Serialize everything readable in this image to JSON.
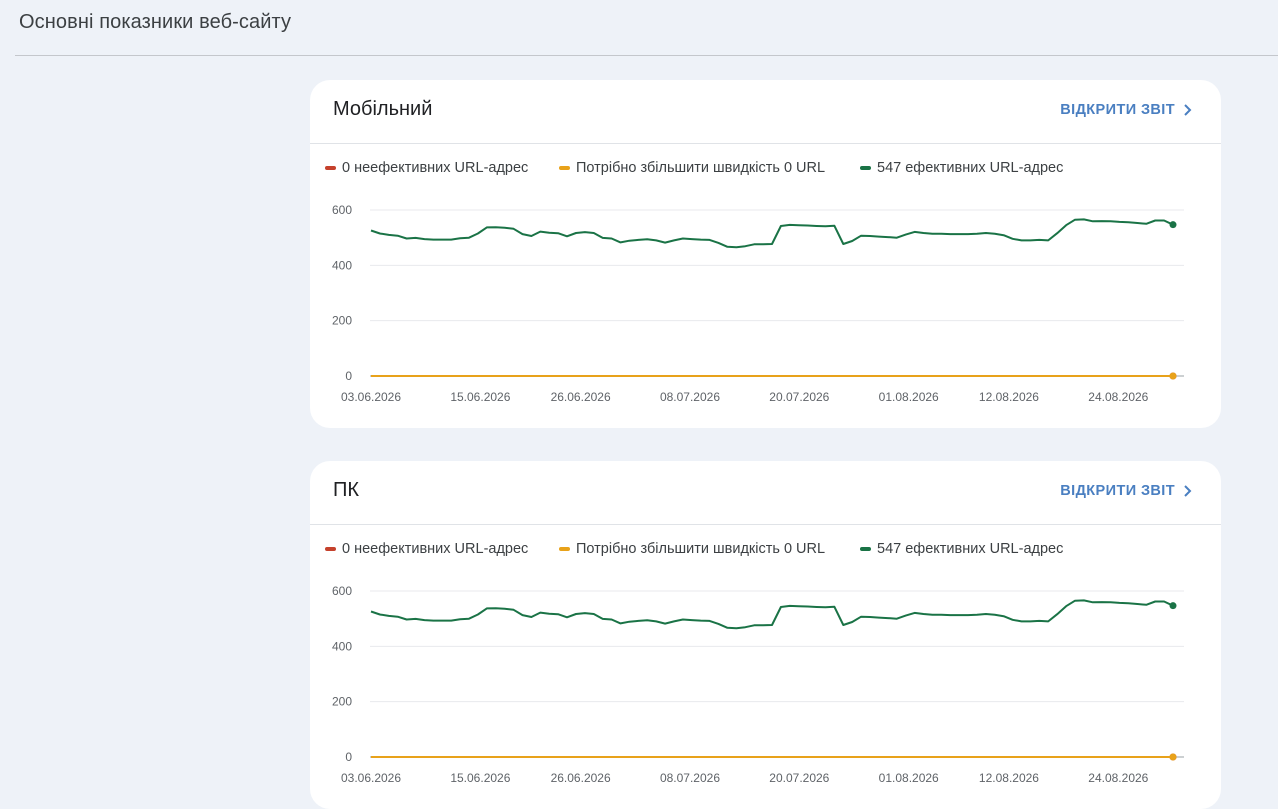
{
  "page": {
    "title": "Основні показники веб-сайту"
  },
  "cards": [
    {
      "id": "mobile",
      "title": "Мобільний",
      "open_report_label": "ВІДКРИТИ ЗВІТ",
      "legend": [
        {
          "label": "0 неефективних URL-адрес",
          "color": "#c5412c"
        },
        {
          "label": "Потрібно збільшити швидкість 0 URL",
          "color": "#e8a21a"
        },
        {
          "label": "547 ефективних URL-адрес",
          "color": "#1a7346"
        }
      ]
    },
    {
      "id": "desktop",
      "title": "ПК",
      "open_report_label": "ВІДКРИТИ ЗВІТ",
      "legend": [
        {
          "label": "0 неефективних URL-адрес",
          "color": "#c5412c"
        },
        {
          "label": "Потрібно збільшити швидкість 0 URL",
          "color": "#e8a21a"
        },
        {
          "label": "547 ефективних URL-адрес",
          "color": "#1a7346"
        }
      ]
    }
  ],
  "chart_data": [
    {
      "type": "line",
      "ylim": [
        0,
        600
      ],
      "y_ticks": [
        0,
        200,
        400,
        600
      ],
      "x_tick_labels": [
        "03.06.2026",
        "15.06.2026",
        "26.06.2026",
        "08.07.2026",
        "20.07.2026",
        "01.08.2026",
        "12.08.2026",
        "24.08.2026"
      ],
      "x_start": "03.06.2026",
      "x_end": "30.08.2026",
      "series": [
        {
          "name": "547 ефективних URL-адрес",
          "color": "#1a7346",
          "values": [
            526,
            515,
            510,
            507,
            497,
            499,
            495,
            493,
            493,
            493,
            498,
            500,
            515,
            537,
            538,
            536,
            532,
            513,
            506,
            522,
            518,
            516,
            505,
            517,
            520,
            517,
            499,
            497,
            483,
            489,
            492,
            494,
            490,
            482,
            490,
            497,
            495,
            493,
            492,
            481,
            467,
            465,
            469,
            476,
            476,
            477,
            542,
            546,
            545,
            544,
            542,
            541,
            543,
            477,
            488,
            507,
            506,
            504,
            502,
            500,
            511,
            521,
            517,
            514,
            514,
            513,
            513,
            513,
            514,
            517,
            514,
            509,
            496,
            490,
            490,
            492,
            490,
            516,
            545,
            565,
            566,
            559,
            560,
            559,
            557,
            556,
            553,
            550,
            562,
            562,
            547
          ]
        },
        {
          "name": "Потрібно збільшити швидкість 0 URL",
          "color": "#e8a21a",
          "values": [
            0
          ]
        },
        {
          "name": "0 неефективних URL-адрес",
          "color": "#c5412c",
          "values": [
            0
          ]
        }
      ]
    },
    {
      "type": "line",
      "ylim": [
        0,
        600
      ],
      "y_ticks": [
        0,
        200,
        400,
        600
      ],
      "x_tick_labels": [
        "03.06.2026",
        "15.06.2026",
        "26.06.2026",
        "08.07.2026",
        "20.07.2026",
        "01.08.2026",
        "12.08.2026",
        "24.08.2026"
      ],
      "x_start": "03.06.2026",
      "x_end": "30.08.2026",
      "series": [
        {
          "name": "547 ефективних URL-адрес",
          "color": "#1a7346",
          "values": [
            526,
            515,
            510,
            507,
            497,
            499,
            495,
            493,
            493,
            493,
            498,
            500,
            515,
            537,
            538,
            536,
            532,
            513,
            506,
            522,
            518,
            516,
            505,
            517,
            520,
            517,
            499,
            497,
            483,
            489,
            492,
            494,
            490,
            482,
            490,
            497,
            495,
            493,
            492,
            481,
            467,
            465,
            469,
            476,
            476,
            477,
            542,
            546,
            545,
            544,
            542,
            541,
            543,
            477,
            488,
            507,
            506,
            504,
            502,
            500,
            511,
            521,
            517,
            514,
            514,
            513,
            513,
            513,
            514,
            517,
            514,
            509,
            496,
            490,
            490,
            492,
            490,
            516,
            545,
            565,
            566,
            559,
            560,
            559,
            557,
            556,
            553,
            550,
            562,
            562,
            547
          ]
        },
        {
          "name": "Потрібно збільшити швидкість 0 URL",
          "color": "#e8a21a",
          "values": [
            0
          ]
        },
        {
          "name": "0 неефективних URL-адрес",
          "color": "#c5412c",
          "values": [
            0
          ]
        }
      ]
    }
  ]
}
